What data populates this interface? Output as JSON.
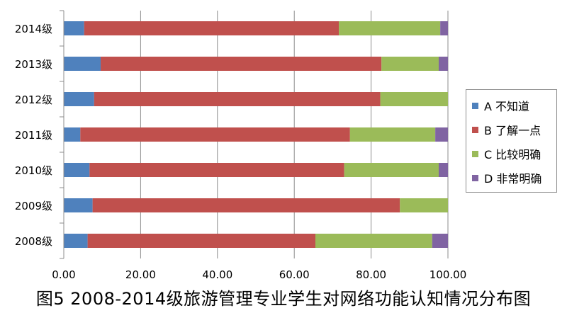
{
  "caption": "图5 2008-2014级旅游管理专业学生对网络功能认知情况分布图",
  "chart_data": {
    "type": "bar",
    "orientation": "horizontal",
    "stacked": true,
    "categories": [
      "2014级",
      "2013级",
      "2012级",
      "2011级",
      "2010级",
      "2009级",
      "2008级"
    ],
    "series": [
      {
        "name": "A 不知道",
        "color": "#4f81bd",
        "values": [
          5.3,
          9.6,
          7.9,
          4.3,
          6.7,
          7.5,
          6.2
        ]
      },
      {
        "name": "B 了解一点",
        "color": "#c0504d",
        "values": [
          66.3,
          73.1,
          74.5,
          70.2,
          66.3,
          80.0,
          59.3
        ]
      },
      {
        "name": "C 比较明确",
        "color": "#9bbb59",
        "values": [
          26.4,
          14.9,
          17.6,
          22.2,
          24.6,
          12.5,
          30.4
        ]
      },
      {
        "name": "D 非常明确",
        "color": "#8064a2",
        "values": [
          2.0,
          2.4,
          0.0,
          3.3,
          2.4,
          0.0,
          4.1
        ]
      }
    ],
    "xlim": [
      0,
      100
    ],
    "xticks": [
      "0.00",
      "20.00",
      "40.00",
      "60.00",
      "80.00",
      "100.00"
    ],
    "grid": true,
    "legend_position": "right"
  }
}
